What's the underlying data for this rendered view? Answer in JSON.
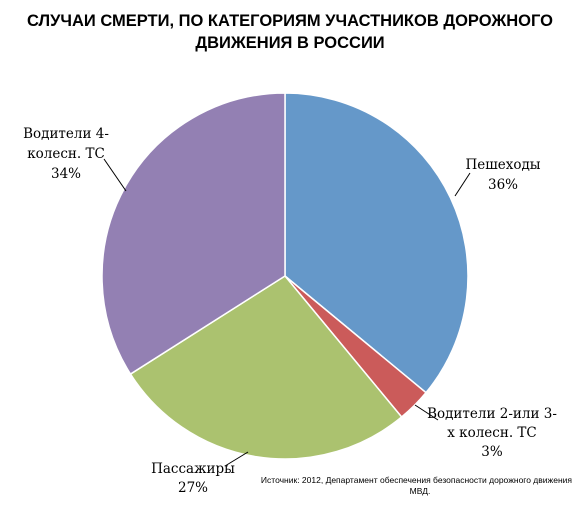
{
  "chart_data": {
    "type": "pie",
    "title_lines": [
      "СЛУЧАИ СМЕРТИ, ПО КАТЕГОРИЯМ УЧАСТНИКОВ ДОРОЖНОГО",
      "ДВИЖЕНИЯ В РОССИИ"
    ],
    "start_angle_deg": 0,
    "direction": "clockwise",
    "legend": "none",
    "slices": [
      {
        "label_lines": [
          "Пешеходы"
        ],
        "percent_label": "36%",
        "value": 36,
        "color": "#6598c9"
      },
      {
        "label_lines": [
          "Водители 2-или 3-",
          "х колесн. ТС"
        ],
        "percent_label": "3%",
        "value": 3,
        "color": "#cb5b5a"
      },
      {
        "label_lines": [
          "Пассажиры"
        ],
        "percent_label": "27%",
        "value": 27,
        "color": "#abc26f"
      },
      {
        "label_lines": [
          "Водители 4-",
          "колесн. ТС"
        ],
        "percent_label": "34%",
        "value": 34,
        "color": "#9380b3"
      }
    ],
    "source_lines": [
      "Источник: 2012, Департамент обеспечения безопасности дорожного движения",
      "МВД."
    ]
  }
}
